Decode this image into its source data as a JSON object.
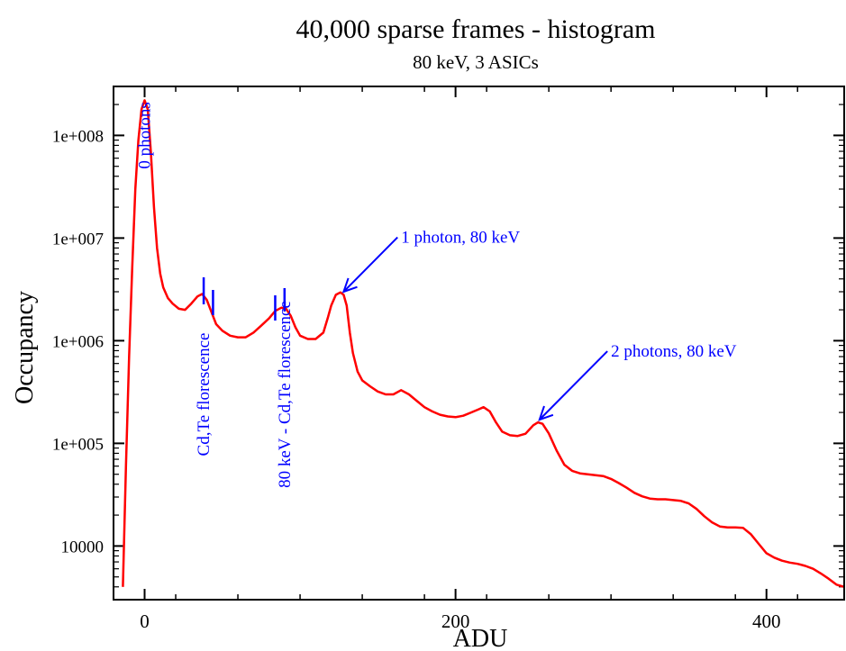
{
  "chart_data": {
    "type": "line",
    "title": "40,000 sparse frames - histogram",
    "subtitle": "80 keV, 3 ASICs",
    "xlabel": "ADU",
    "ylabel": "Occupancy",
    "xlim": [
      -20,
      450
    ],
    "ylim": [
      3000,
      300000000
    ],
    "y_scale": "log",
    "grid": false,
    "x_ticks": [
      {
        "value": 0,
        "label": "0"
      },
      {
        "value": 200,
        "label": "200"
      },
      {
        "value": 400,
        "label": "400"
      }
    ],
    "y_ticks": [
      {
        "value": 100000000,
        "label": "1e+008"
      },
      {
        "value": 10000000,
        "label": "1e+007"
      },
      {
        "value": 1000000,
        "label": "1e+006"
      },
      {
        "value": 100000,
        "label": "1e+005"
      },
      {
        "value": 10000,
        "label": "10000"
      }
    ],
    "series": [
      {
        "color": "#ff0000",
        "x": [
          -14,
          -12,
          -10,
          -8,
          -6,
          -4,
          -2,
          0,
          2,
          4,
          6,
          8,
          10,
          12,
          15,
          18,
          22,
          26,
          30,
          34,
          37,
          40,
          43,
          46,
          50,
          55,
          60,
          65,
          70,
          75,
          80,
          84,
          88,
          91,
          94,
          97,
          100,
          105,
          110,
          115,
          118,
          120,
          123,
          126,
          128,
          130,
          132,
          134,
          137,
          140,
          145,
          150,
          155,
          160,
          165,
          170,
          175,
          180,
          185,
          190,
          195,
          200,
          205,
          210,
          215,
          218,
          222,
          226,
          230,
          235,
          240,
          245,
          250,
          253,
          256,
          260,
          265,
          270,
          275,
          280,
          285,
          290,
          295,
          300,
          305,
          310,
          315,
          320,
          325,
          330,
          335,
          340,
          345,
          350,
          355,
          360,
          365,
          370,
          375,
          380,
          385,
          390,
          395,
          400,
          405,
          410,
          415,
          420,
          425,
          430,
          435,
          440,
          445,
          450
        ],
        "y": [
          4000,
          60000,
          700000,
          5000000,
          30000000,
          90000000,
          180000000,
          220000000,
          180000000,
          70000000,
          20000000,
          8000000,
          4500000,
          3300000,
          2600000,
          2300000,
          2050000,
          2000000,
          2300000,
          2700000,
          2850000,
          2500000,
          1900000,
          1450000,
          1250000,
          1120000,
          1080000,
          1080000,
          1200000,
          1400000,
          1650000,
          1950000,
          2100000,
          2050000,
          1750000,
          1350000,
          1120000,
          1040000,
          1040000,
          1200000,
          1700000,
          2200000,
          2800000,
          2950000,
          2800000,
          2200000,
          1200000,
          760000,
          500000,
          410000,
          360000,
          320000,
          300000,
          300000,
          330000,
          300000,
          260000,
          225000,
          205000,
          190000,
          183000,
          180000,
          186000,
          200000,
          215000,
          225000,
          205000,
          160000,
          130000,
          120000,
          118000,
          124000,
          150000,
          160000,
          155000,
          125000,
          85000,
          62000,
          54000,
          51000,
          50000,
          49000,
          48000,
          45000,
          41000,
          37000,
          33000,
          30500,
          29000,
          28500,
          28500,
          28000,
          27500,
          26000,
          23000,
          19500,
          17000,
          15500,
          15200,
          15200,
          15000,
          13000,
          10500,
          8500,
          7700,
          7200,
          6900,
          6700,
          6400,
          6000,
          5400,
          4800,
          4200,
          4000
        ]
      }
    ],
    "annotations": [
      {
        "text": "0 photons",
        "x": 0,
        "y": 100000000,
        "orientation": "vertical"
      },
      {
        "text": "Cd,Te florescence",
        "x": 38,
        "y": 300000,
        "orientation": "vertical"
      },
      {
        "text": "80 keV - Cd,Te florescence",
        "x": 90,
        "y": 300000,
        "orientation": "vertical"
      },
      {
        "text": "1 photon, 80 keV",
        "x": 165,
        "y": 9000000,
        "orientation": "horizontal",
        "arrow_to": [
          128,
          3000000
        ]
      },
      {
        "text": "2 photons, 80 keV",
        "x": 300,
        "y": 700000,
        "orientation": "horizontal",
        "arrow_to": [
          254,
          170000
        ]
      }
    ],
    "markers": [
      38,
      44,
      84,
      90
    ],
    "annotation_color": "#0000ff"
  }
}
